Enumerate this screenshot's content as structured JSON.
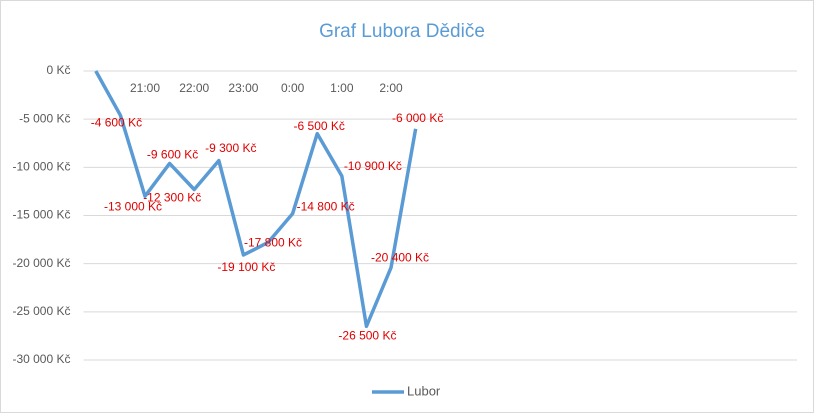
{
  "chart_data": {
    "type": "line",
    "title": "Graf Lubora Dědiče",
    "categories": [
      null,
      null,
      "21:00",
      null,
      "22:00",
      null,
      "23:00",
      null,
      "0:00",
      null,
      "1:00",
      null,
      "2:00",
      null,
      null,
      null,
      null,
      null,
      null,
      null,
      null,
      null,
      null,
      null,
      null,
      null,
      null,
      null,
      null
    ],
    "series": [
      {
        "name": "Lubor",
        "color": "#5b9bd5",
        "values": [
          0,
          -4600,
          -13000,
          -9600,
          -12300,
          -9300,
          -19100,
          -17800,
          -14800,
          -6500,
          -10900,
          -26500,
          -20400,
          -6000,
          null,
          null,
          null,
          null,
          null,
          null,
          null,
          null,
          null,
          null,
          null,
          null,
          null,
          null,
          null
        ],
        "value_labels": [
          null,
          "-4 600 Kč",
          "-13 000 Kč",
          "-9 600 Kč",
          "-12 300 Kč",
          "-9 300 Kč",
          "-19 100 Kč",
          "-17 800 Kč",
          "-14 800 Kč",
          "-6 500 Kč",
          "-10 900 Kč",
          "-26 500 Kč",
          "-20 400 Kč",
          "-6 000 Kč",
          null,
          null,
          null,
          null,
          null,
          null,
          null,
          null,
          null,
          null,
          null,
          null,
          null,
          null,
          null
        ]
      }
    ],
    "ylim": [
      -30000,
      0
    ],
    "yticks": [
      {
        "value": -30000,
        "label": "-30 000 Kč"
      },
      {
        "value": -25000,
        "label": "-25 000 Kč"
      },
      {
        "value": -20000,
        "label": "-20 000 Kč"
      },
      {
        "value": -15000,
        "label": "-15 000 Kč"
      },
      {
        "value": -10000,
        "label": "-10 000 Kč"
      },
      {
        "value": -5000,
        "label": "-5 000 Kč"
      },
      {
        "value": 0,
        "label": "0 Kč"
      }
    ],
    "grid": true,
    "legend": "bottom"
  }
}
